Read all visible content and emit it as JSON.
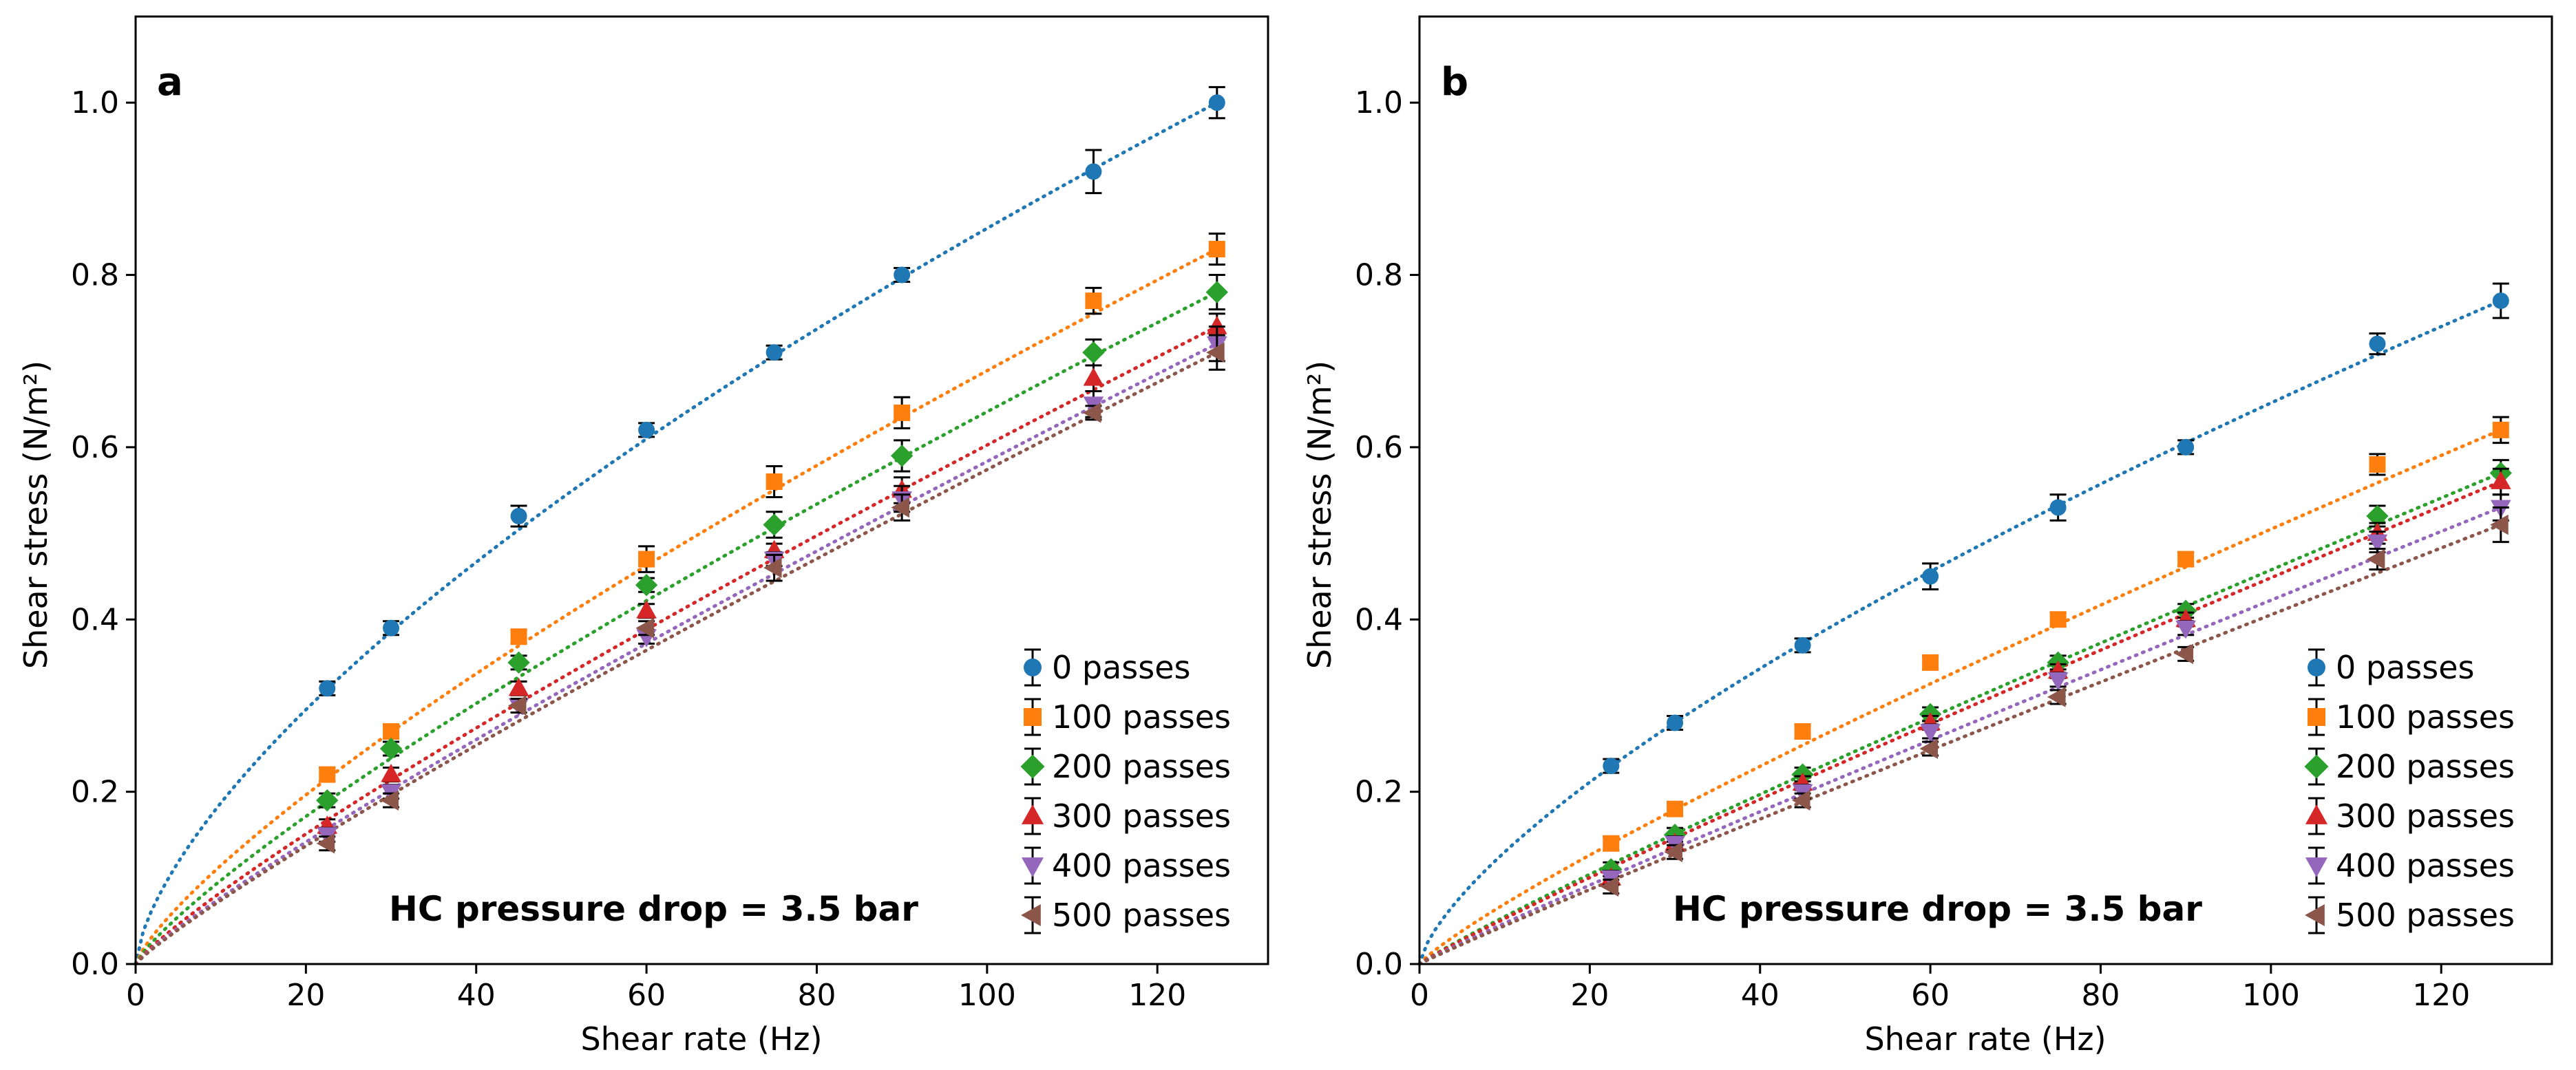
{
  "chart_data": [
    {
      "type": "scatter",
      "panel_label": "a",
      "annotation": "HC pressure drop = 3.5 bar",
      "xlabel": "Shear rate (Hz)",
      "ylabel": "Shear stress (N/m²)",
      "xlim": [
        0,
        133
      ],
      "ylim": [
        0,
        1.1
      ],
      "xticks": [
        0,
        20,
        40,
        60,
        80,
        100,
        120
      ],
      "yticks": [
        0.0,
        0.2,
        0.4,
        0.6,
        0.8,
        1.0
      ],
      "xtick_labels": [
        "0",
        "20",
        "40",
        "60",
        "80",
        "100",
        "120"
      ],
      "ytick_labels": [
        "0.0",
        "0.2",
        "0.4",
        "0.6",
        "0.8",
        "1.0"
      ],
      "legend_position": "bottom-right",
      "x": [
        22.5,
        30,
        45,
        60,
        75,
        90,
        112.5,
        127
      ],
      "series": [
        {
          "name": "0 passes",
          "marker": "circle",
          "color": "#1f77b4",
          "fit_exponent": 0.66,
          "values": [
            0.32,
            0.39,
            0.52,
            0.62,
            0.71,
            0.8,
            0.92,
            1.0
          ],
          "errors": [
            0.008,
            0.008,
            0.012,
            0.008,
            0.008,
            0.008,
            0.025,
            0.018
          ]
        },
        {
          "name": "100 passes",
          "marker": "square",
          "color": "#ff7f0e",
          "fit_exponent": 0.78,
          "values": [
            0.22,
            0.27,
            0.38,
            0.47,
            0.56,
            0.64,
            0.77,
            0.83
          ],
          "errors": [
            0.008,
            0.008,
            0.008,
            0.015,
            0.018,
            0.018,
            0.015,
            0.018
          ]
        },
        {
          "name": "200 passes",
          "marker": "diamond",
          "color": "#2ca02c",
          "fit_exponent": 0.82,
          "values": [
            0.19,
            0.25,
            0.35,
            0.44,
            0.51,
            0.59,
            0.71,
            0.78
          ],
          "errors": [
            0.008,
            0.008,
            0.008,
            0.008,
            0.015,
            0.018,
            0.015,
            0.02
          ]
        },
        {
          "name": "300 passes",
          "marker": "triangle-up",
          "color": "#d62728",
          "fit_exponent": 0.86,
          "values": [
            0.16,
            0.22,
            0.32,
            0.41,
            0.48,
            0.55,
            0.68,
            0.74
          ],
          "errors": [
            0.008,
            0.008,
            0.008,
            0.008,
            0.008,
            0.015,
            0.015,
            0.015
          ]
        },
        {
          "name": "400 passes",
          "marker": "triangle-down",
          "color": "#9467bd",
          "fit_exponent": 0.88,
          "values": [
            0.15,
            0.2,
            0.3,
            0.38,
            0.47,
            0.54,
            0.65,
            0.72
          ],
          "errors": [
            0.008,
            0.008,
            0.008,
            0.008,
            0.008,
            0.015,
            0.015,
            0.02
          ]
        },
        {
          "name": "500 passes",
          "marker": "triangle-left",
          "color": "#8c564b",
          "fit_exponent": 0.89,
          "values": [
            0.14,
            0.19,
            0.3,
            0.39,
            0.46,
            0.53,
            0.64,
            0.71
          ],
          "errors": [
            0.008,
            0.008,
            0.008,
            0.008,
            0.015,
            0.015,
            0.008,
            0.02
          ]
        }
      ]
    },
    {
      "type": "scatter",
      "panel_label": "b",
      "annotation": "HC pressure drop = 3.5 bar",
      "xlabel": "Shear rate (Hz)",
      "ylabel": "Shear stress (N/m²)",
      "xlim": [
        0,
        133
      ],
      "ylim": [
        0,
        1.1
      ],
      "xticks": [
        0,
        20,
        40,
        60,
        80,
        100,
        120
      ],
      "yticks": [
        0.0,
        0.2,
        0.4,
        0.6,
        0.8,
        1.0
      ],
      "xtick_labels": [
        "0",
        "20",
        "40",
        "60",
        "80",
        "100",
        "120"
      ],
      "ytick_labels": [
        "0.0",
        "0.2",
        "0.4",
        "0.6",
        "0.8",
        "1.0"
      ],
      "legend_position": "bottom-right",
      "x": [
        22.5,
        30,
        45,
        60,
        75,
        90,
        112.5,
        127
      ],
      "series": [
        {
          "name": "0 passes",
          "marker": "circle",
          "color": "#1f77b4",
          "fit_exponent": 0.7,
          "values": [
            0.23,
            0.28,
            0.37,
            0.45,
            0.53,
            0.6,
            0.72,
            0.77
          ],
          "errors": [
            0.008,
            0.008,
            0.008,
            0.015,
            0.015,
            0.008,
            0.012,
            0.02
          ]
        },
        {
          "name": "100 passes",
          "marker": "square",
          "color": "#ff7f0e",
          "fit_exponent": 0.86,
          "values": [
            0.14,
            0.18,
            0.27,
            0.35,
            0.4,
            0.47,
            0.58,
            0.62
          ],
          "errors": [
            0.008,
            0.008,
            0.008,
            0.008,
            0.008,
            0.008,
            0.012,
            0.015
          ]
        },
        {
          "name": "200 passes",
          "marker": "diamond",
          "color": "#2ca02c",
          "fit_exponent": 0.92,
          "values": [
            0.11,
            0.15,
            0.22,
            0.29,
            0.35,
            0.41,
            0.52,
            0.57
          ],
          "errors": [
            0.008,
            0.008,
            0.008,
            0.008,
            0.008,
            0.008,
            0.012,
            0.015
          ]
        },
        {
          "name": "300 passes",
          "marker": "triangle-up",
          "color": "#d62728",
          "fit_exponent": 0.93,
          "values": [
            0.1,
            0.14,
            0.21,
            0.28,
            0.34,
            0.4,
            0.5,
            0.56
          ],
          "errors": [
            0.008,
            0.008,
            0.008,
            0.008,
            0.008,
            0.008,
            0.012,
            0.015
          ]
        },
        {
          "name": "400 passes",
          "marker": "triangle-down",
          "color": "#9467bd",
          "fit_exponent": 0.95,
          "values": [
            0.1,
            0.14,
            0.2,
            0.27,
            0.33,
            0.39,
            0.49,
            0.53
          ],
          "errors": [
            0.008,
            0.008,
            0.008,
            0.008,
            0.008,
            0.008,
            0.012,
            0.015
          ]
        },
        {
          "name": "500 passes",
          "marker": "triangle-left",
          "color": "#8c564b",
          "fit_exponent": 0.96,
          "values": [
            0.09,
            0.13,
            0.19,
            0.25,
            0.31,
            0.36,
            0.47,
            0.51
          ],
          "errors": [
            0.008,
            0.008,
            0.008,
            0.008,
            0.008,
            0.008,
            0.012,
            0.02
          ]
        }
      ]
    }
  ]
}
